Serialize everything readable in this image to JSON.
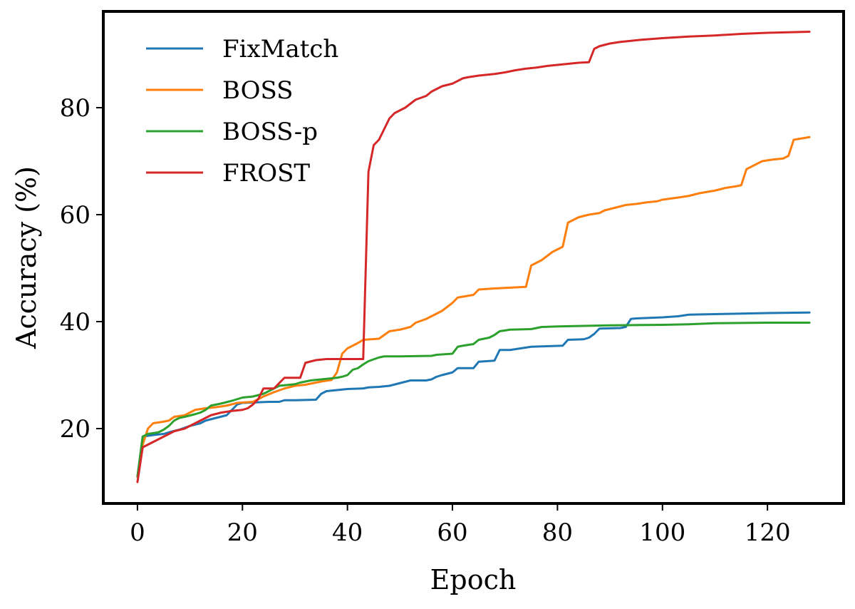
{
  "chart_data": {
    "type": "line",
    "title": "",
    "xlabel": "Epoch",
    "ylabel": "Accuracy (%)",
    "xlim": [
      -6.5,
      134.5
    ],
    "ylim": [
      6,
      98
    ],
    "xticks": [
      0,
      20,
      40,
      60,
      80,
      100,
      120
    ],
    "yticks": [
      20,
      40,
      60,
      80
    ],
    "xtick_labels": [
      "0",
      "20",
      "40",
      "60",
      "80",
      "100",
      "120"
    ],
    "ytick_labels": [
      "20",
      "40",
      "60",
      "80"
    ],
    "grid": false,
    "legend_position": "top-left",
    "series": [
      {
        "name": "FixMatch",
        "color": "#1f77b4",
        "points": [
          [
            0,
            11
          ],
          [
            1,
            18.5
          ],
          [
            3,
            18.8
          ],
          [
            5,
            19
          ],
          [
            6,
            19.3
          ],
          [
            8,
            19.8
          ],
          [
            10,
            20.5
          ],
          [
            12,
            21
          ],
          [
            13,
            21.5
          ],
          [
            15,
            22
          ],
          [
            17,
            22.5
          ],
          [
            19,
            24.5
          ],
          [
            20,
            24.8
          ],
          [
            25,
            25
          ],
          [
            27,
            25
          ],
          [
            28,
            25.3
          ],
          [
            30,
            25.3
          ],
          [
            34,
            25.4
          ],
          [
            35,
            26.5
          ],
          [
            36,
            27
          ],
          [
            37,
            27.1
          ],
          [
            38,
            27.2
          ],
          [
            40,
            27.4
          ],
          [
            43,
            27.5
          ],
          [
            44,
            27.7
          ],
          [
            46,
            27.8
          ],
          [
            48,
            28
          ],
          [
            50,
            28.5
          ],
          [
            52,
            29
          ],
          [
            55,
            29
          ],
          [
            56,
            29.2
          ],
          [
            57,
            29.7
          ],
          [
            58,
            30
          ],
          [
            60,
            30.5
          ],
          [
            61,
            31.3
          ],
          [
            64,
            31.3
          ],
          [
            65,
            32.5
          ],
          [
            68,
            32.7
          ],
          [
            69,
            34.7
          ],
          [
            71,
            34.7
          ],
          [
            73,
            35
          ],
          [
            75,
            35.3
          ],
          [
            78,
            35.4
          ],
          [
            81,
            35.5
          ],
          [
            82,
            36.6
          ],
          [
            85,
            36.7
          ],
          [
            86,
            37
          ],
          [
            87,
            37.7
          ],
          [
            88,
            38.7
          ],
          [
            92,
            38.8
          ],
          [
            93,
            39
          ],
          [
            94,
            40.5
          ],
          [
            95,
            40.6
          ],
          [
            100,
            40.8
          ],
          [
            103,
            41
          ],
          [
            105,
            41.3
          ],
          [
            110,
            41.4
          ],
          [
            115,
            41.5
          ],
          [
            120,
            41.6
          ],
          [
            128,
            41.7
          ]
        ]
      },
      {
        "name": "BOSS",
        "color": "#ff7f0e",
        "points": [
          [
            0,
            11
          ],
          [
            1,
            17
          ],
          [
            2,
            20
          ],
          [
            3,
            21
          ],
          [
            5,
            21.3
          ],
          [
            6,
            21.5
          ],
          [
            7,
            22.2
          ],
          [
            9,
            22.5
          ],
          [
            11,
            23.5
          ],
          [
            13,
            23.8
          ],
          [
            15,
            24
          ],
          [
            17,
            24.3
          ],
          [
            19,
            24.8
          ],
          [
            22,
            25
          ],
          [
            24,
            26
          ],
          [
            26,
            26.8
          ],
          [
            28,
            27.5
          ],
          [
            30,
            28
          ],
          [
            32,
            28.2
          ],
          [
            35,
            28.8
          ],
          [
            37,
            29.1
          ],
          [
            38,
            30.5
          ],
          [
            39,
            34
          ],
          [
            40,
            35
          ],
          [
            42,
            36
          ],
          [
            43,
            36.6
          ],
          [
            46,
            36.8
          ],
          [
            47,
            37.5
          ],
          [
            48,
            38.2
          ],
          [
            50,
            38.5
          ],
          [
            52,
            39
          ],
          [
            53,
            39.8
          ],
          [
            55,
            40.5
          ],
          [
            57,
            41.5
          ],
          [
            58,
            42
          ],
          [
            60,
            43.5
          ],
          [
            61,
            44.5
          ],
          [
            64,
            45
          ],
          [
            65,
            46
          ],
          [
            68,
            46.2
          ],
          [
            70,
            46.3
          ],
          [
            74,
            46.5
          ],
          [
            75,
            50.5
          ],
          [
            77,
            51.5
          ],
          [
            79,
            53
          ],
          [
            80,
            53.5
          ],
          [
            81,
            54
          ],
          [
            82,
            58.5
          ],
          [
            84,
            59.5
          ],
          [
            86,
            60
          ],
          [
            88,
            60.3
          ],
          [
            89,
            60.8
          ],
          [
            91,
            61.3
          ],
          [
            93,
            61.8
          ],
          [
            95,
            62
          ],
          [
            97,
            62.3
          ],
          [
            99,
            62.5
          ],
          [
            100,
            62.8
          ],
          [
            103,
            63.2
          ],
          [
            105,
            63.5
          ],
          [
            107,
            64
          ],
          [
            110,
            64.5
          ],
          [
            112,
            65
          ],
          [
            114,
            65.3
          ],
          [
            115,
            65.5
          ],
          [
            116,
            68.5
          ],
          [
            118,
            69.5
          ],
          [
            119,
            70
          ],
          [
            121,
            70.3
          ],
          [
            123,
            70.5
          ],
          [
            124,
            71
          ],
          [
            125,
            74
          ],
          [
            128,
            74.5
          ]
        ]
      },
      {
        "name": "BOSS-p",
        "color": "#2ca02c",
        "points": [
          [
            0,
            11
          ],
          [
            1,
            18.5
          ],
          [
            2,
            19
          ],
          [
            4,
            19.3
          ],
          [
            5,
            19.8
          ],
          [
            6,
            20.5
          ],
          [
            7,
            21.5
          ],
          [
            8,
            22
          ],
          [
            9,
            22.2
          ],
          [
            11,
            22.7
          ],
          [
            12,
            23
          ],
          [
            13,
            23.5
          ],
          [
            14,
            24.3
          ],
          [
            16,
            24.7
          ],
          [
            18,
            25.2
          ],
          [
            19,
            25.5
          ],
          [
            20,
            25.8
          ],
          [
            22,
            26
          ],
          [
            24,
            26.5
          ],
          [
            26,
            27.5
          ],
          [
            27,
            28
          ],
          [
            29,
            28.2
          ],
          [
            30,
            28.3
          ],
          [
            31,
            28.6
          ],
          [
            33,
            29
          ],
          [
            35,
            29.2
          ],
          [
            38,
            29.5
          ],
          [
            39,
            29.7
          ],
          [
            40,
            30
          ],
          [
            41,
            31
          ],
          [
            42,
            31.3
          ],
          [
            43,
            32
          ],
          [
            44,
            32.6
          ],
          [
            46,
            33.3
          ],
          [
            47,
            33.5
          ],
          [
            50,
            33.5
          ],
          [
            56,
            33.6
          ],
          [
            57,
            33.8
          ],
          [
            60,
            34
          ],
          [
            61,
            35.3
          ],
          [
            62,
            35.5
          ],
          [
            64,
            35.8
          ],
          [
            65,
            36.6
          ],
          [
            67,
            37
          ],
          [
            68,
            37.5
          ],
          [
            69,
            38.2
          ],
          [
            71,
            38.5
          ],
          [
            75,
            38.6
          ],
          [
            77,
            39
          ],
          [
            80,
            39.1
          ],
          [
            85,
            39.2
          ],
          [
            90,
            39.3
          ],
          [
            100,
            39.4
          ],
          [
            105,
            39.5
          ],
          [
            110,
            39.7
          ],
          [
            120,
            39.8
          ],
          [
            128,
            39.8
          ]
        ]
      },
      {
        "name": "FROST",
        "color": "#d62728",
        "points": [
          [
            0,
            10
          ],
          [
            1,
            16.5
          ],
          [
            2,
            17
          ],
          [
            3,
            17.5
          ],
          [
            4,
            18
          ],
          [
            5,
            18.5
          ],
          [
            7,
            19.5
          ],
          [
            9,
            20
          ],
          [
            10,
            20.5
          ],
          [
            12,
            21.5
          ],
          [
            14,
            22.5
          ],
          [
            16,
            23
          ],
          [
            18,
            23.3
          ],
          [
            20,
            23.5
          ],
          [
            21,
            23.8
          ],
          [
            22,
            24.5
          ],
          [
            23,
            25.5
          ],
          [
            24,
            27.5
          ],
          [
            26,
            27.5
          ],
          [
            27,
            28.5
          ],
          [
            28,
            29.5
          ],
          [
            31,
            29.5
          ],
          [
            32,
            32.3
          ],
          [
            34,
            32.8
          ],
          [
            36,
            33
          ],
          [
            38,
            33
          ],
          [
            43,
            33
          ],
          [
            44,
            68
          ],
          [
            45,
            73
          ],
          [
            46,
            74
          ],
          [
            47,
            76
          ],
          [
            48,
            78
          ],
          [
            49,
            79
          ],
          [
            51,
            80
          ],
          [
            53,
            81.5
          ],
          [
            55,
            82.2
          ],
          [
            56,
            83
          ],
          [
            58,
            84
          ],
          [
            60,
            84.5
          ],
          [
            62,
            85.5
          ],
          [
            63,
            85.7
          ],
          [
            65,
            86
          ],
          [
            68,
            86.3
          ],
          [
            70,
            86.6
          ],
          [
            72,
            87
          ],
          [
            74,
            87.3
          ],
          [
            76,
            87.5
          ],
          [
            78,
            87.8
          ],
          [
            80,
            88
          ],
          [
            82,
            88.2
          ],
          [
            84,
            88.4
          ],
          [
            86,
            88.5
          ],
          [
            87,
            91
          ],
          [
            88,
            91.5
          ],
          [
            90,
            92
          ],
          [
            92,
            92.3
          ],
          [
            94,
            92.5
          ],
          [
            96,
            92.7
          ],
          [
            100,
            93
          ],
          [
            105,
            93.3
          ],
          [
            110,
            93.5
          ],
          [
            115,
            93.8
          ],
          [
            120,
            94
          ],
          [
            128,
            94.2
          ]
        ]
      }
    ]
  }
}
